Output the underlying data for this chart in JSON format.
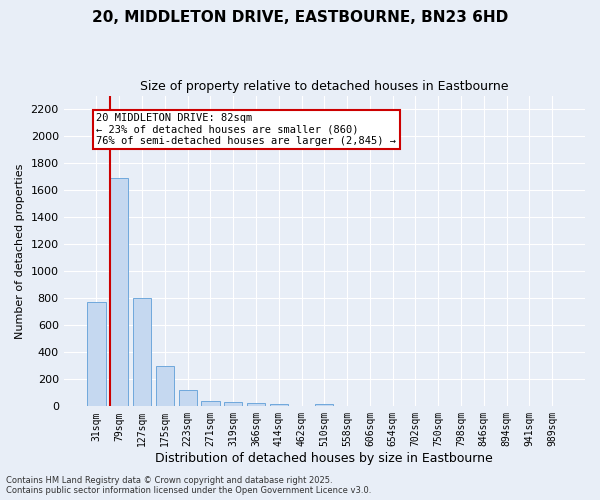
{
  "title_line1": "20, MIDDLETON DRIVE, EASTBOURNE, BN23 6HD",
  "title_line2": "Size of property relative to detached houses in Eastbourne",
  "xlabel": "Distribution of detached houses by size in Eastbourne",
  "ylabel": "Number of detached properties",
  "categories": [
    "31sqm",
    "79sqm",
    "127sqm",
    "175sqm",
    "223sqm",
    "271sqm",
    "319sqm",
    "366sqm",
    "414sqm",
    "462sqm",
    "510sqm",
    "558sqm",
    "606sqm",
    "654sqm",
    "702sqm",
    "750sqm",
    "798sqm",
    "846sqm",
    "894sqm",
    "941sqm",
    "989sqm"
  ],
  "values": [
    770,
    1690,
    800,
    295,
    120,
    38,
    32,
    27,
    16,
    0,
    19,
    0,
    0,
    0,
    0,
    0,
    0,
    0,
    0,
    0,
    0
  ],
  "bar_color": "#c5d8f0",
  "bar_edge_color": "#6fa8dc",
  "vline_color": "#cc0000",
  "annotation_text": "20 MIDDLETON DRIVE: 82sqm\n← 23% of detached houses are smaller (860)\n76% of semi-detached houses are larger (2,845) →",
  "annotation_box_color": "#ffffff",
  "annotation_box_edge": "#cc0000",
  "ylim": [
    0,
    2300
  ],
  "yticks": [
    0,
    200,
    400,
    600,
    800,
    1000,
    1200,
    1400,
    1600,
    1800,
    2000,
    2200
  ],
  "background_color": "#e8eef7",
  "grid_color": "#ffffff",
  "footnote1": "Contains HM Land Registry data © Crown copyright and database right 2025.",
  "footnote2": "Contains public sector information licensed under the Open Government Licence v3.0."
}
